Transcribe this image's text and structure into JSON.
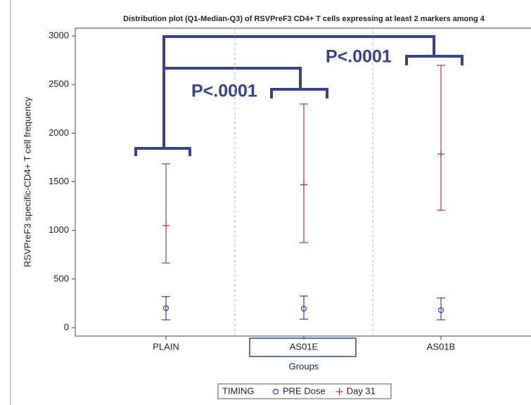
{
  "chart_data": {
    "type": "errorbar",
    "title": "Distribution plot (Q1-Median-Q3) of RSVPreF3 CD4+ T cells expressing at least 2 markers among 4",
    "x_label": "Groups",
    "y_label": "RSVPreF3 specific-CD4+ T cell frequency",
    "categories": [
      "PLAIN",
      "AS01E",
      "AS01B"
    ],
    "legend_title": "TIMING",
    "series": [
      {
        "name": "PRE Dose",
        "color": "#3a3ad0",
        "marker": "circle",
        "values": [
          200,
          195,
          180
        ],
        "q1": [
          80,
          87,
          80
        ],
        "q3": [
          320,
          325,
          305
        ]
      },
      {
        "name": "Day 31",
        "color": "#b23a4a",
        "marker": "plus",
        "values": [
          1050,
          1470,
          1785
        ],
        "q1": [
          665,
          875,
          1207
        ],
        "q3": [
          1685,
          2300,
          2697
        ]
      }
    ],
    "ylim": [
      -87,
      3080
    ],
    "yticks": [
      0,
      500,
      1000,
      1500,
      2000,
      2500,
      3000
    ],
    "annotations": [
      "P<.0001",
      "P<.0001"
    ]
  }
}
